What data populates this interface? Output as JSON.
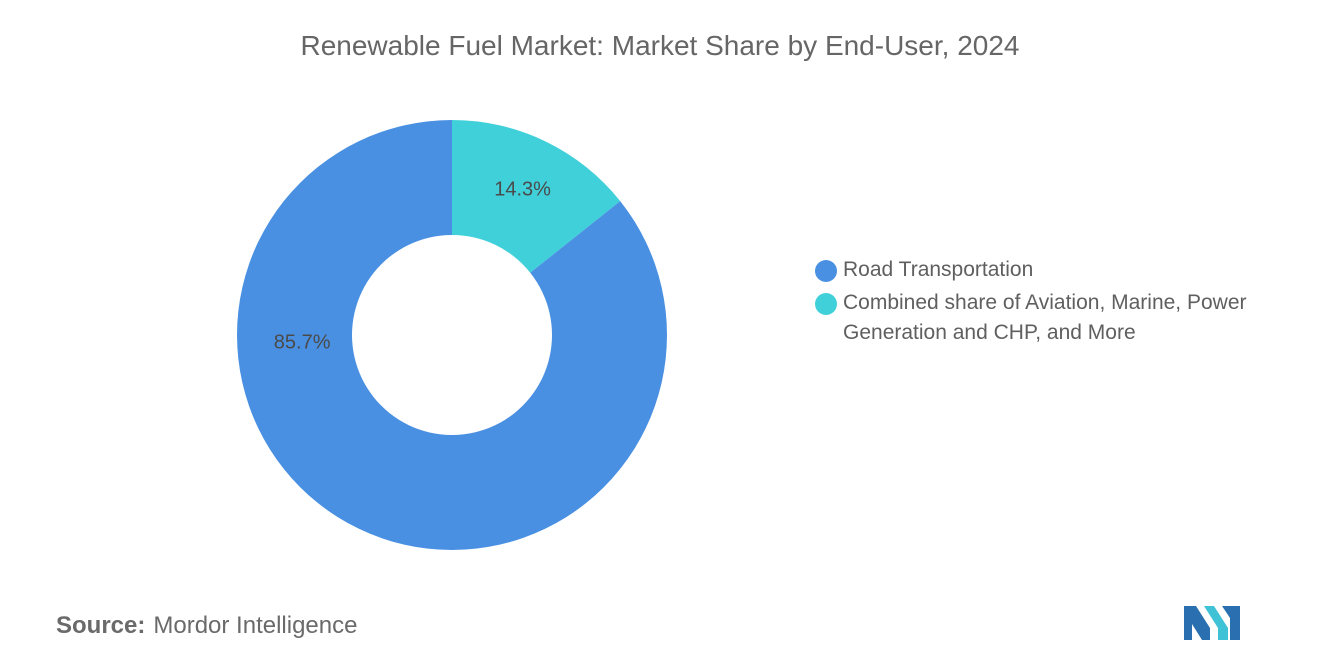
{
  "title": "Renewable Fuel Market: Market Share by End-User, 2024",
  "source": {
    "label": "Source:",
    "value": "Mordor Intelligence"
  },
  "logo_icon": "mordor-intelligence-logo",
  "chart_data": {
    "type": "pie",
    "variant": "donut",
    "title": "Renewable Fuel Market: Market Share by End-User, 2024",
    "legend_position": "right",
    "slices": [
      {
        "label": "Combined share of Aviation, Marine, Power Generation and CHP, and More",
        "value": 14.3,
        "display": "14.3%",
        "color": "#40d0da"
      },
      {
        "label": "Road Transportation",
        "value": 85.7,
        "display": "85.7%",
        "color": "#4a90e2"
      }
    ],
    "legend": [
      {
        "label": "Road Transportation",
        "color": "#4a90e2"
      },
      {
        "label": "Combined share of Aviation, Marine, Power Generation and CHP, and More",
        "color": "#40d0da"
      }
    ]
  }
}
